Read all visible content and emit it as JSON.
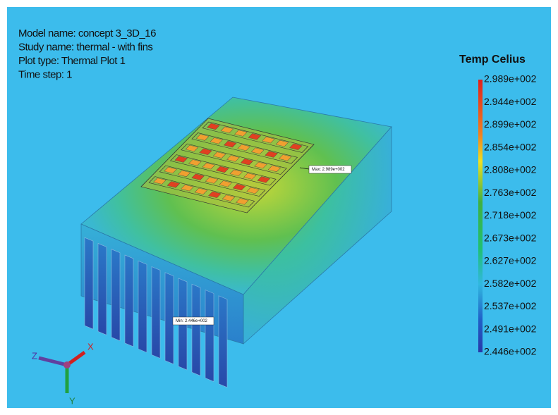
{
  "info": [
    "Model name: concept 3_3D_16",
    "Study name: thermal - with fins",
    "Plot type: Thermal Plot 1",
    "Time step: 1"
  ],
  "legend": {
    "title": "Temp Celius",
    "labels": [
      "2.989e+002",
      "2.944e+002",
      "2.899e+002",
      "2.854e+002",
      "2.808e+002",
      "2.763e+002",
      "2.718e+002",
      "2.673e+002",
      "2.627e+002",
      "2.582e+002",
      "2.537e+002",
      "2.491e+002",
      "2.446e+002"
    ]
  },
  "probes": {
    "max": "Max: 2.989e+002",
    "min": "Min: 2.446e+002"
  },
  "triad": {
    "x": "X",
    "y": "Y",
    "z": "Z"
  }
}
